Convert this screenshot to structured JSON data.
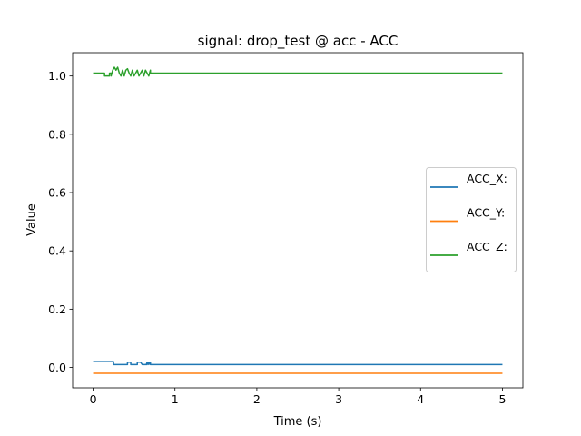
{
  "chart_data": {
    "type": "line",
    "title": "signal: drop_test @ acc - ACC",
    "xlabel": "Time (s)",
    "ylabel": "Value",
    "xlim": [
      -0.25,
      5.25
    ],
    "ylim": [
      -0.07,
      1.08
    ],
    "xticks": [
      0,
      1,
      2,
      3,
      4,
      5
    ],
    "xtick_labels": [
      "0",
      "1",
      "2",
      "3",
      "4",
      "5"
    ],
    "yticks": [
      0.0,
      0.2,
      0.4,
      0.6,
      0.8,
      1.0
    ],
    "ytick_labels": [
      "0.0",
      "0.2",
      "0.4",
      "0.6",
      "0.8",
      "1.0"
    ],
    "grid": false,
    "legend_position": "center-right",
    "series": [
      {
        "name": "ACC_X:",
        "color": "#1f77b4",
        "x": [
          0,
          0.25,
          0.25,
          0.42,
          0.42,
          0.44,
          0.46,
          0.46,
          0.54,
          0.54,
          0.56,
          0.58,
          0.6,
          0.6,
          0.65,
          0.66,
          0.66,
          0.67,
          0.68,
          0.69,
          0.7,
          0.7,
          5
        ],
        "y": [
          0.02,
          0.02,
          0.01,
          0.01,
          0.018,
          0.018,
          0.018,
          0.01,
          0.01,
          0.018,
          0.018,
          0.018,
          0.01,
          0.01,
          0.01,
          0.018,
          0.01,
          0.018,
          0.01,
          0.018,
          0.018,
          0.01,
          0.01
        ]
      },
      {
        "name": "ACC_Y:",
        "color": "#ff7f0e",
        "x": [
          0,
          5
        ],
        "y": [
          -0.02,
          -0.02
        ]
      },
      {
        "name": "ACC_Z:",
        "color": "#2ca02c",
        "x": [
          0,
          0.14,
          0.14,
          0.2,
          0.2,
          0.22,
          0.22,
          0.24,
          0.26,
          0.28,
          0.3,
          0.32,
          0.34,
          0.36,
          0.38,
          0.4,
          0.42,
          0.44,
          0.46,
          0.48,
          0.5,
          0.52,
          0.54,
          0.56,
          0.58,
          0.6,
          0.62,
          0.64,
          0.66,
          0.68,
          0.7,
          0.7,
          5
        ],
        "y": [
          1.01,
          1.01,
          1.0,
          1.0,
          1.01,
          1.01,
          1.0,
          1.02,
          1.03,
          1.02,
          1.03,
          1.01,
          1.0,
          1.02,
          1.0,
          1.02,
          1.025,
          1.01,
          1.0,
          1.02,
          1.0,
          1.01,
          1.02,
          1.0,
          1.01,
          1.02,
          1.0,
          1.02,
          1.01,
          1.0,
          1.02,
          1.01,
          1.01
        ]
      }
    ]
  }
}
